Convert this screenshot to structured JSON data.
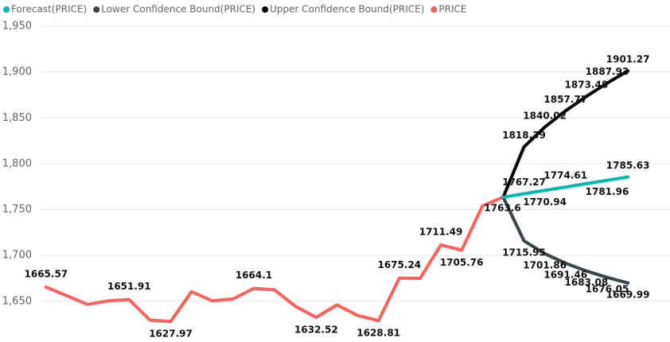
{
  "chart_data": {
    "type": "line",
    "ylim": [
      1616,
      1950
    ],
    "yticks": [
      {
        "value": 1650,
        "label": "1,650"
      },
      {
        "value": 1700,
        "label": "1,700"
      },
      {
        "value": 1750,
        "label": "1,750"
      },
      {
        "value": 1800,
        "label": "1,800"
      },
      {
        "value": 1850,
        "label": "1,850"
      },
      {
        "value": 1900,
        "label": "1,900"
      },
      {
        "value": 1950,
        "label": "1,950"
      }
    ],
    "xlim": [
      -0.3,
      28.8
    ],
    "grid": true,
    "legend": "top-left",
    "series": [
      {
        "name": "Forecast(PRICE)",
        "color": "#01b8aa",
        "x": [
          22,
          23,
          24,
          25,
          26,
          27,
          28
        ],
        "values": [
          1763.6,
          1767.27,
          1770.94,
          1774.61,
          1778.28,
          1781.96,
          1785.63
        ],
        "value_labels": [
          null,
          "1767.27",
          "1770.94",
          "1774.61",
          null,
          "1781.96",
          "1785.63"
        ]
      },
      {
        "name": "Lower Confidence Bound(PRICE)",
        "color": "#374649",
        "x": [
          22,
          23,
          24,
          25,
          26,
          27,
          28
        ],
        "values": [
          1763.6,
          1715.95,
          1701.86,
          1691.46,
          1683.08,
          1676.05,
          1669.99
        ],
        "value_labels": [
          null,
          "1715.95",
          "1701.86",
          "1691.46",
          "1683.08",
          "1676.05",
          "1669.99"
        ]
      },
      {
        "name": "Upper Confidence Bound(PRICE)",
        "color": "#000000",
        "x": [
          22,
          23,
          24,
          25,
          26,
          27,
          28
        ],
        "values": [
          1763.6,
          1818.39,
          1840.02,
          1857.77,
          1873.48,
          1887.93,
          1901.27
        ],
        "value_labels": [
          null,
          "1818.39",
          "1840.02",
          "1857.77",
          "1873.48",
          "1887.93",
          "1901.27"
        ]
      },
      {
        "name": "PRICE",
        "color": "#fd625e",
        "x": [
          0,
          2,
          3,
          4,
          5,
          6,
          7,
          8,
          9,
          10,
          11,
          12,
          13,
          14,
          15,
          16,
          17,
          18,
          19,
          20,
          21,
          22
        ],
        "values": [
          1665.57,
          1646.5,
          1650.5,
          1651.91,
          1629.5,
          1627.97,
          1660.5,
          1650.5,
          1652.5,
          1664.1,
          1662.5,
          1644.5,
          1632.52,
          1646,
          1634.5,
          1628.81,
          1675.24,
          1675,
          1711.49,
          1705.76,
          1754,
          1763.6
        ],
        "value_labels": [
          "1665.57",
          null,
          null,
          "1651.91",
          null,
          "1627.97",
          null,
          null,
          null,
          "1664.1",
          null,
          null,
          "1632.52",
          null,
          null,
          "1628.81",
          "1675.24",
          null,
          "1711.49",
          "1705.76",
          null,
          "1763.6"
        ]
      }
    ]
  }
}
